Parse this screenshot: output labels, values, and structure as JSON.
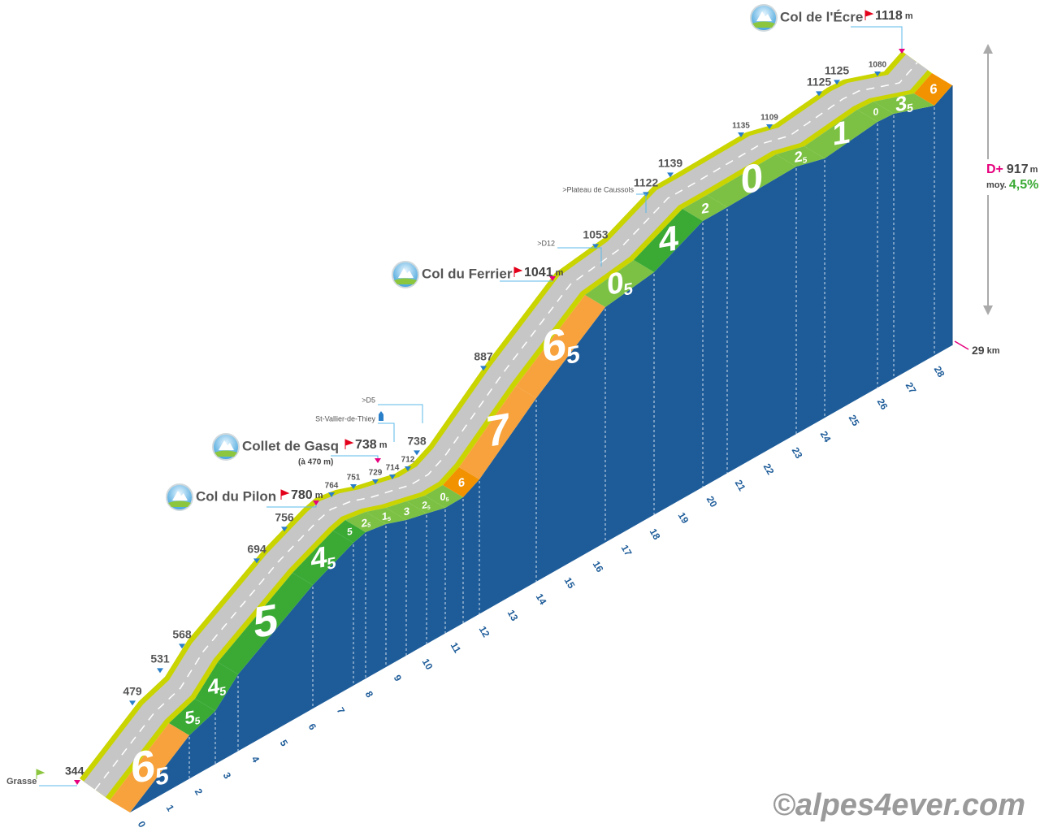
{
  "start": {
    "name": "Grasse",
    "altitude": "344"
  },
  "cols": [
    {
      "name": "Col du Pilon",
      "altitude": "780",
      "unit": "m"
    },
    {
      "name": "Collet de Gasq",
      "altitude": "738",
      "unit": "m",
      "note": "(à 470 m)"
    },
    {
      "name": "Col du Ferrier",
      "altitude": "1041",
      "unit": "m"
    },
    {
      "name": "Col de l'Écre",
      "altitude": "1118",
      "unit": "m"
    }
  ],
  "altitudes": [
    "479",
    "531",
    "568",
    "694",
    "756",
    "764",
    "751",
    "729",
    "714",
    "712",
    "738",
    "887",
    "1053",
    "1122",
    "1139",
    "1135",
    "1109",
    "1125",
    "1125",
    "1080"
  ],
  "road_signs": [
    ">D5",
    "St-Vallier-de-Thiey",
    ">D12",
    ">Plateau de Caussols"
  ],
  "gradients": [
    {
      "whole": "6",
      "decimal": "5"
    },
    {
      "whole": "5",
      "decimal": "5"
    },
    {
      "whole": "4",
      "decimal": "5"
    },
    {
      "whole": "5"
    },
    {
      "whole": "4",
      "decimal": "5"
    },
    {
      "whole": "5"
    },
    {
      "whole": "2",
      "decimal": "5"
    },
    {
      "whole": "1",
      "decimal": "5"
    },
    {
      "whole": "3"
    },
    {
      "whole": "2",
      "decimal": "5"
    },
    {
      "whole": "0",
      "decimal": "5"
    },
    {
      "whole": "6"
    },
    {
      "whole": "7"
    },
    {
      "whole": "6",
      "decimal": "5"
    },
    {
      "whole": "0",
      "decimal": "5"
    },
    {
      "whole": "4"
    },
    {
      "whole": "2"
    },
    {
      "whole": "0"
    },
    {
      "whole": "2",
      "decimal": "5"
    },
    {
      "whole": "1"
    },
    {
      "whole": "0"
    },
    {
      "whole": "3",
      "decimal": "5"
    },
    {
      "whole": "6"
    }
  ],
  "km_marks": [
    "0",
    "1",
    "2",
    "3",
    "4",
    "5",
    "6",
    "7",
    "8",
    "9",
    "10",
    "11",
    "12",
    "13",
    "14",
    "15",
    "16",
    "17",
    "18",
    "19",
    "20",
    "21",
    "22",
    "23",
    "24",
    "25",
    "26",
    "27",
    "28"
  ],
  "finish": {
    "distance": "29",
    "unit": "km"
  },
  "summary": {
    "gain_label": "D+",
    "gain": "917",
    "unit": "m",
    "average_label": "moy.",
    "average": "4,5%"
  },
  "copyright": "©alpes4ever.com"
}
